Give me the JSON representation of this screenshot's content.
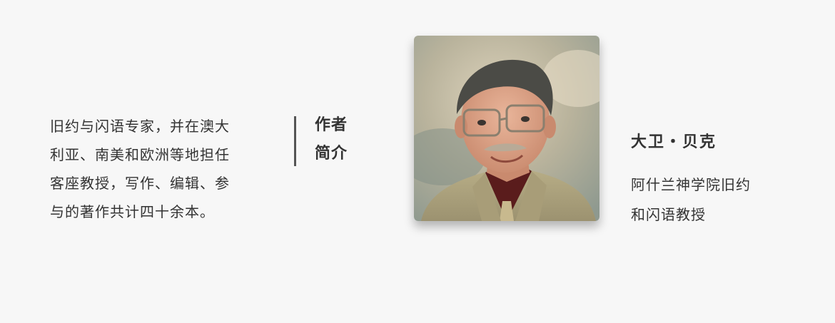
{
  "author_intro": {
    "bio_lines": [
      "旧约与闪语专家，并在澳大",
      "利亚、南美和欧洲等地担任",
      "客座教授，写作、编辑、参",
      "与的著作共计四十余本。"
    ],
    "section_label_lines": [
      "作者",
      "简介"
    ]
  },
  "author": {
    "name": "大卫・贝克",
    "title_lines": [
      "阿什兰神学院旧约",
      "和闪语教授"
    ]
  },
  "photo": {
    "icon": "author-portrait",
    "background_colors": [
      "#c9bfa3",
      "#9aa196",
      "#d8cdb6"
    ]
  }
}
